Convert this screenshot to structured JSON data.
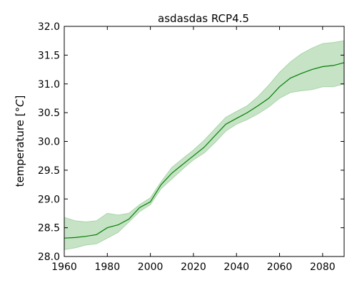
{
  "chart_data": {
    "type": "line",
    "title": "asdasdas RCP4.5",
    "xlabel": "",
    "ylabel": "temperature [",
    "ylabel_unit": "°C",
    "ylabel_close": "]",
    "xlim": [
      1960,
      2090
    ],
    "ylim": [
      28.0,
      32.0
    ],
    "x_ticks": [
      "1960",
      "1980",
      "2000",
      "2020",
      "2040",
      "2060",
      "2080"
    ],
    "y_ticks": [
      "28.0",
      "28.5",
      "29.0",
      "29.5",
      "30.0",
      "30.5",
      "31.0",
      "31.5",
      "32.0"
    ],
    "grid": false,
    "colors": {
      "line": "#007f00",
      "band": "#c6e3c6",
      "band_edge": "#a9d5a9"
    },
    "series": [
      {
        "x": [
          1960,
          1965,
          1970,
          1975,
          1980,
          1985,
          1990,
          1995,
          2000,
          2005,
          2010,
          2015,
          2020,
          2025,
          2030,
          2035,
          2040,
          2045,
          2050,
          2055,
          2060,
          2065,
          2070,
          2075,
          2080,
          2085,
          2090
        ],
        "mean": [
          28.32,
          28.33,
          28.35,
          28.38,
          28.5,
          28.55,
          28.65,
          28.85,
          28.95,
          29.25,
          29.45,
          29.6,
          29.75,
          29.9,
          30.1,
          30.3,
          30.4,
          30.5,
          30.62,
          30.75,
          30.95,
          31.1,
          31.18,
          31.25,
          31.3,
          31.32,
          31.37
        ],
        "lower": [
          28.12,
          28.15,
          28.2,
          28.22,
          28.32,
          28.42,
          28.6,
          28.78,
          28.9,
          29.18,
          29.35,
          29.52,
          29.68,
          29.8,
          29.98,
          30.18,
          30.3,
          30.38,
          30.48,
          30.6,
          30.75,
          30.85,
          30.88,
          30.9,
          30.95,
          30.95,
          31.0
        ],
        "upper": [
          28.68,
          28.62,
          28.6,
          28.62,
          28.75,
          28.72,
          28.75,
          28.9,
          29.02,
          29.3,
          29.55,
          29.7,
          29.85,
          30.02,
          30.22,
          30.42,
          30.52,
          30.62,
          30.78,
          30.98,
          31.2,
          31.38,
          31.52,
          31.62,
          31.7,
          31.72,
          31.75
        ]
      }
    ]
  }
}
